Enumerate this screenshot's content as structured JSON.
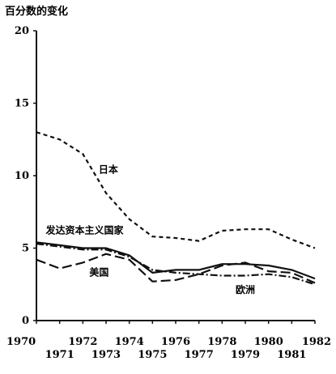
{
  "chart_data": {
    "type": "line",
    "ylabel": "百分数的变化",
    "xlim": [
      1970,
      1982
    ],
    "ylim": [
      0,
      20
    ],
    "yticks": [
      "0",
      "5",
      "10",
      "15",
      "20"
    ],
    "xticks": [
      "1970",
      "1971",
      "1972",
      "1973",
      "1974",
      "1975",
      "1976",
      "1977",
      "1978",
      "1979",
      "1980",
      "1981",
      "1982"
    ],
    "grid": false,
    "legend": "none",
    "x": [
      1970,
      1971,
      1972,
      1973,
      1974,
      1975,
      1976,
      1977,
      1978,
      1979,
      1980,
      1981,
      1982
    ],
    "series": [
      {
        "name": "日本",
        "style": "short-dash",
        "values": [
          13.0,
          12.5,
          11.5,
          8.8,
          7.0,
          5.8,
          5.7,
          5.5,
          6.2,
          6.3,
          6.3,
          5.6,
          5.0
        ]
      },
      {
        "name": "发达资本主义国家",
        "style": "solid",
        "values": [
          5.4,
          5.2,
          5.0,
          5.0,
          4.5,
          3.3,
          3.5,
          3.5,
          3.9,
          3.9,
          3.8,
          3.5,
          2.9
        ]
      },
      {
        "name": "美国",
        "style": "long-dash",
        "values": [
          4.2,
          3.6,
          4.0,
          4.6,
          4.2,
          2.7,
          2.8,
          3.2,
          3.8,
          4.0,
          3.4,
          3.3,
          2.6
        ]
      },
      {
        "name": "欧洲",
        "style": "dash-dot",
        "values": [
          5.3,
          5.1,
          4.9,
          4.9,
          4.4,
          3.5,
          3.3,
          3.2,
          3.1,
          3.1,
          3.2,
          3.0,
          2.5
        ]
      }
    ],
    "annotations": [
      "日本",
      "发达资本主义国家",
      "美国",
      "欧洲"
    ]
  }
}
